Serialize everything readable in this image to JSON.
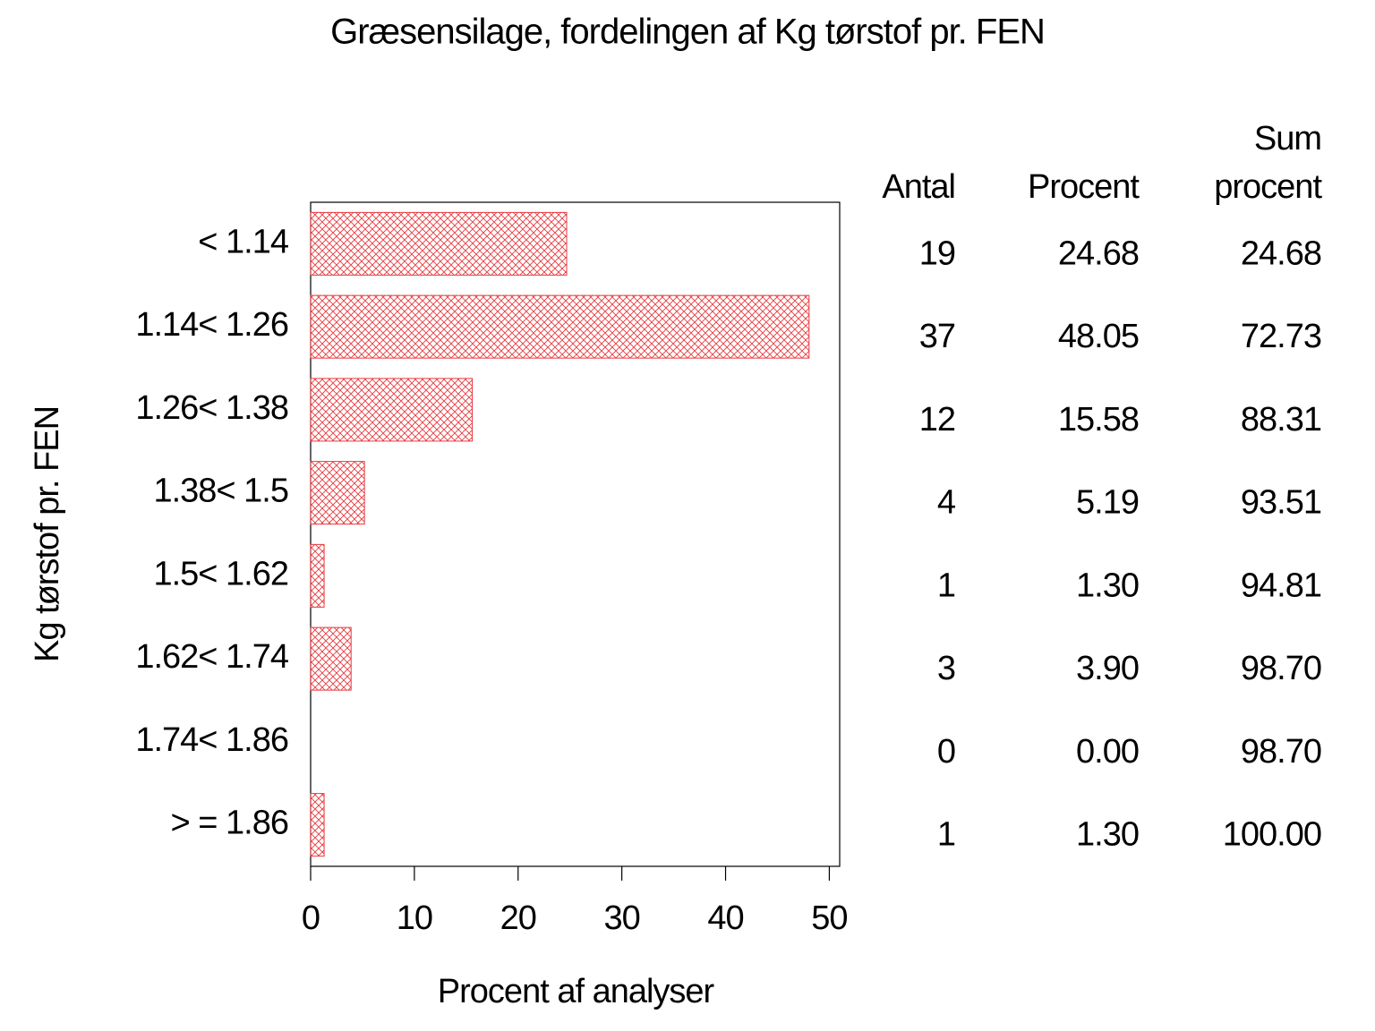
{
  "chart_data": {
    "type": "bar",
    "orientation": "horizontal",
    "title": "Græsensilage, fordelingen af Kg tørstof pr. FEN",
    "x_label": "Procent af analyser",
    "y_label": "Kg tørstof pr. FEN",
    "categories": [
      "< 1.14",
      "1.14< 1.26",
      "1.26< 1.38",
      "1.38< 1.5",
      "1.5< 1.62",
      "1.62< 1.74",
      "1.74< 1.86",
      "> = 1.86"
    ],
    "values": [
      24.68,
      48.05,
      15.58,
      5.19,
      1.3,
      3.9,
      0,
      1.3
    ],
    "value_labels": [
      "24.68",
      "48.05",
      "15.58",
      "5.19",
      "1.30",
      "3.90",
      "0.00",
      "1.30"
    ],
    "color": "#e8383d",
    "xlim": [
      0,
      51
    ],
    "xticks": [
      0,
      10,
      20,
      30,
      40,
      50
    ],
    "table": {
      "count_header": "Antal",
      "percent_header": "Procent",
      "cumulative_header": [
        "Sum",
        "procent"
      ],
      "counts": [
        19,
        37,
        12,
        4,
        1,
        3,
        0,
        1
      ],
      "cumulative": [
        "24.68",
        "72.73",
        "88.31",
        "93.51",
        "94.81",
        "98.70",
        "98.70",
        "100.00"
      ]
    }
  }
}
